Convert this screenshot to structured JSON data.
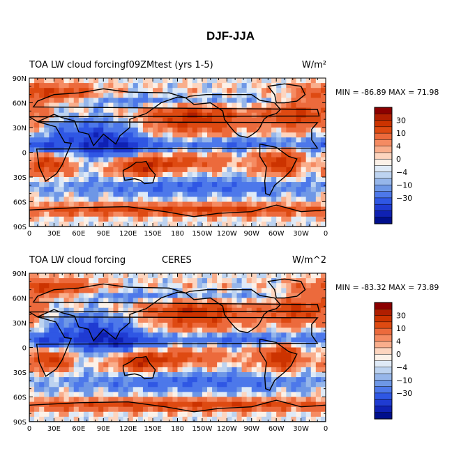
{
  "title": "DJF-JJA",
  "chart_data": [
    {
      "type": "heatmap",
      "panel": "top",
      "left_title": "TOA LW cloud forcing",
      "center_title": "f09ZMtest (yrs 1-5)",
      "units": "W/m²",
      "min_max_text": "MIN = -86.89  MAX =  71.98",
      "x_ticks": [
        "0",
        "30E",
        "60E",
        "90E",
        "120E",
        "150E",
        "180",
        "150W",
        "120W",
        "90W",
        "60W",
        "30W",
        "0"
      ],
      "y_ticks": [
        "90N",
        "60N",
        "30N",
        "0",
        "30S",
        "60S",
        "90S"
      ],
      "colorbar_labels": [
        "30",
        "10",
        "4",
        "0",
        "-4",
        "-10",
        "-30"
      ],
      "xlim": [
        0,
        360
      ],
      "ylim": [
        -90,
        90
      ],
      "min": -86.89,
      "max": 71.98
    },
    {
      "type": "heatmap",
      "panel": "bottom",
      "left_title": "TOA LW cloud forcing",
      "center_title": "CERES",
      "units": "W/m^2",
      "min_max_text": "MIN = -83.32  MAX =  73.89",
      "x_ticks": [
        "0",
        "30E",
        "60E",
        "90E",
        "120E",
        "150E",
        "180",
        "150W",
        "120W",
        "90W",
        "60W",
        "30W",
        "0"
      ],
      "y_ticks": [
        "90N",
        "60N",
        "30N",
        "0",
        "30S",
        "60S",
        "90S"
      ],
      "colorbar_labels": [
        "30",
        "10",
        "4",
        "0",
        "-4",
        "-10",
        "-30"
      ],
      "xlim": [
        0,
        360
      ],
      "ylim": [
        -90,
        90
      ],
      "min": -83.32,
      "max": 73.89
    }
  ],
  "colorbar_colors": [
    "#8b0000",
    "#b01e00",
    "#cc3300",
    "#de4a12",
    "#ec6a3c",
    "#f58b62",
    "#f9ae8c",
    "#fdd5bf",
    "#fcf1e8",
    "#dfeaf7",
    "#bdd3f0",
    "#96b6ea",
    "#6e97e6",
    "#4d78ea",
    "#2f57e4",
    "#1f3bd2",
    "#0f21b3",
    "#000f8c"
  ]
}
